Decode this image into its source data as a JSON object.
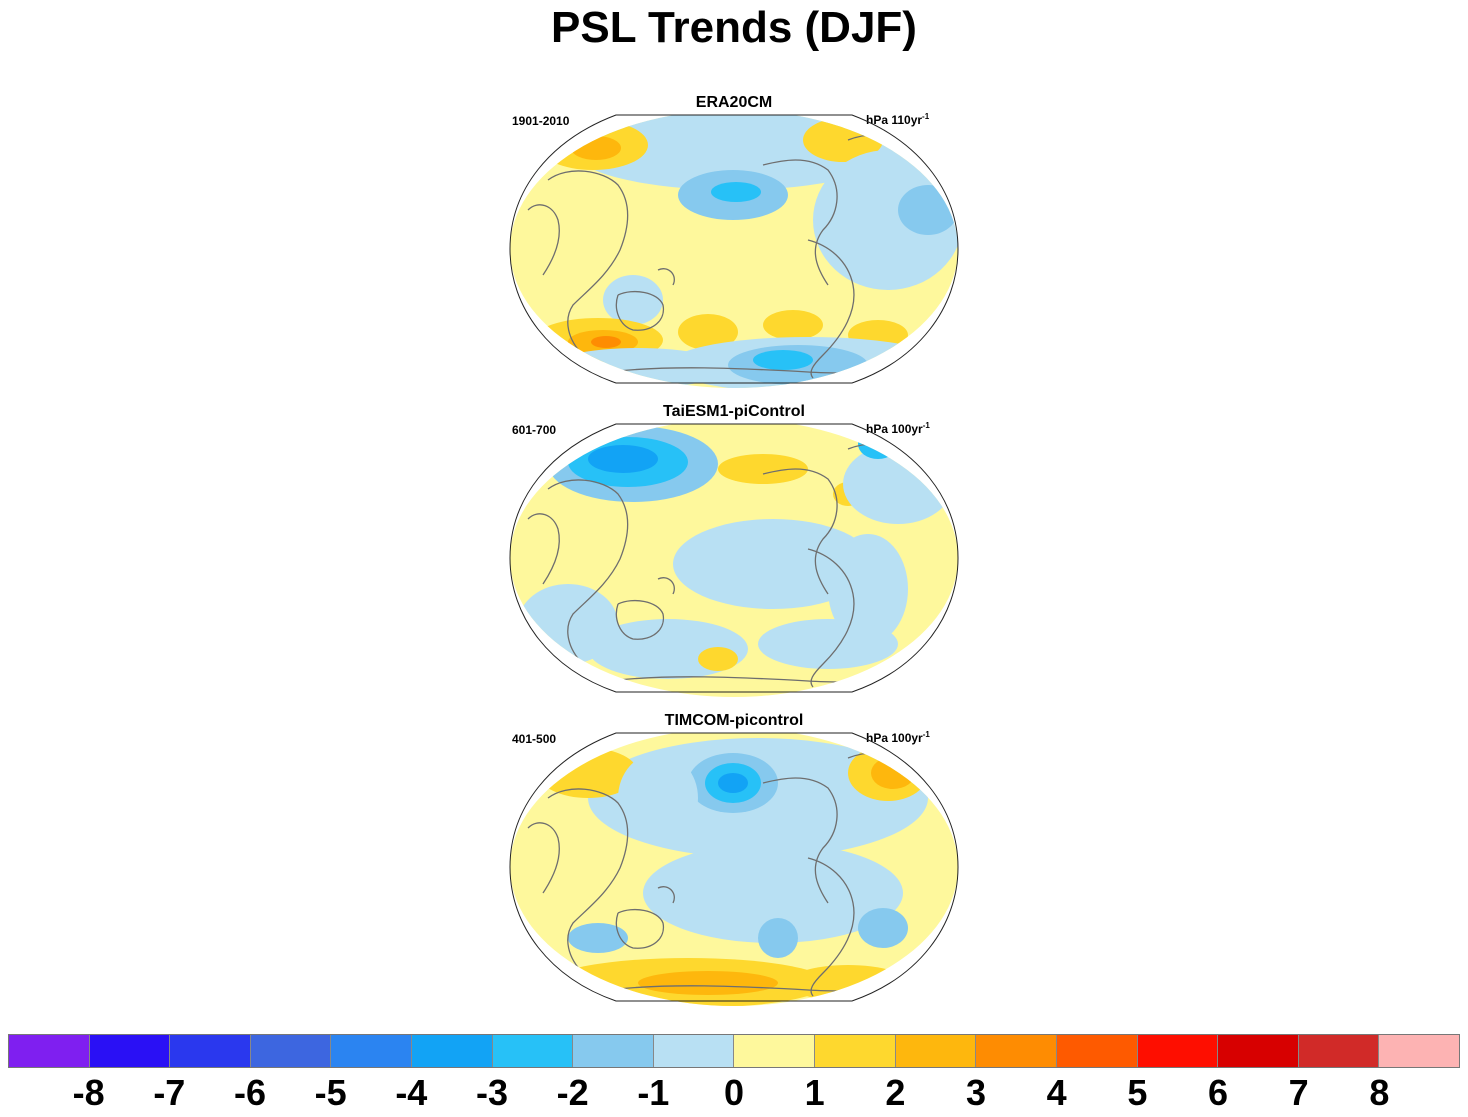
{
  "title": "PSL Trends (DJF)",
  "panels": [
    {
      "title": "ERA20CM",
      "period": "1901-2010",
      "units": "hPa 110yr",
      "units_exp": "-1"
    },
    {
      "title": "TaiESM1-piControl",
      "period": "601-700",
      "units": "hPa 100yr",
      "units_exp": "-1"
    },
    {
      "title": "TIMCOM-picontrol",
      "period": "401-500",
      "units": "hPa 100yr",
      "units_exp": "-1"
    }
  ],
  "colorbar": {
    "colors": [
      "#7f1ff0",
      "#2a10f5",
      "#2a38ee",
      "#3d66e0",
      "#2b84f1",
      "#12a3f5",
      "#27c1f7",
      "#86c9ee",
      "#b8e0f3",
      "#fef89c",
      "#fed82e",
      "#feb70d",
      "#fe8c02",
      "#fe5a00",
      "#fe0e00",
      "#d70000",
      "#d12a28",
      "#fdb3b3"
    ],
    "labels": [
      "-8",
      "-7",
      "-6",
      "-5",
      "-4",
      "-3",
      "-2",
      "-1",
      "0",
      "1",
      "2",
      "3",
      "4",
      "5",
      "6",
      "7",
      "8"
    ]
  }
}
